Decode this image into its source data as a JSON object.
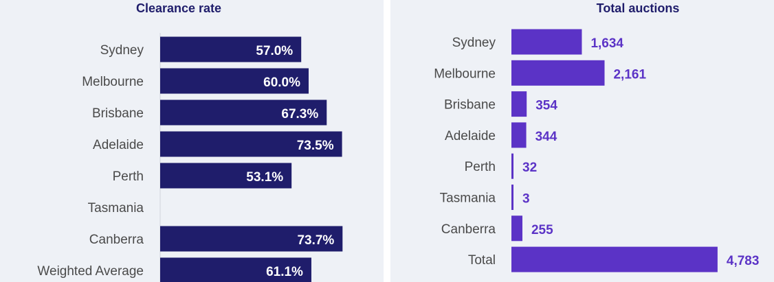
{
  "chart_data": [
    {
      "type": "bar",
      "orientation": "horizontal",
      "title": "Clearance rate",
      "categories": [
        "Sydney",
        "Melbourne",
        "Brisbane",
        "Adelaide",
        "Perth",
        "Tasmania",
        "Canberra",
        "Weighted Average"
      ],
      "values": [
        57.0,
        60.0,
        67.3,
        73.5,
        53.1,
        null,
        73.7,
        61.1
      ],
      "value_labels": [
        "57.0%",
        "60.0%",
        "67.3%",
        "73.5%",
        "53.1%",
        "",
        "73.7%",
        "61.1%"
      ],
      "bar_color": "#1f1d6b",
      "label_color": "#ffffff",
      "label_position": "inside-end",
      "grid": false
    },
    {
      "type": "bar",
      "orientation": "horizontal",
      "title": "Total auctions",
      "categories": [
        "Sydney",
        "Melbourne",
        "Brisbane",
        "Adelaide",
        "Perth",
        "Tasmania",
        "Canberra",
        "Total"
      ],
      "values": [
        1634,
        2161,
        354,
        344,
        32,
        3,
        255,
        4783
      ],
      "value_labels": [
        "1,634",
        "2,161",
        "354",
        "344",
        "32",
        "3",
        "255",
        "4,783"
      ],
      "bar_color": "#5b33c6",
      "label_color": "#5b33c6",
      "label_position": "outside-end",
      "grid": false
    }
  ],
  "colors": {
    "background": "#eef1f6",
    "navy": "#1f1d6b",
    "purple": "#5b33c6"
  }
}
